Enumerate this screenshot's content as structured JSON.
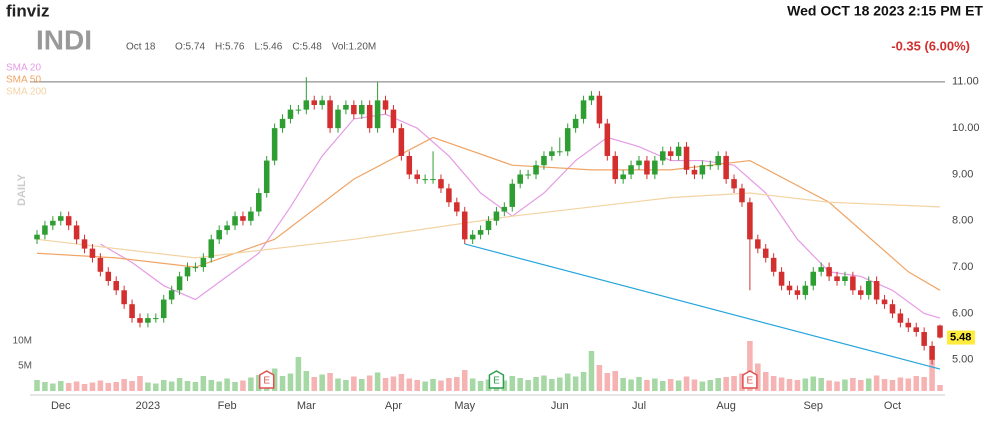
{
  "header": {
    "brand": "finviz",
    "datetime": "Wed OCT 18 2023 2:15 PM ET"
  },
  "chart_data": {
    "type": "candlestick",
    "title": "INDI",
    "date": "Oct 18",
    "quote": [
      "O:5.74",
      "H:5.76",
      "L:5.46",
      "C:5.48",
      "Vol:1.20M"
    ],
    "change": "-0.35 (6.00%)",
    "period": "DAILY",
    "up_color": "#2e9e32",
    "down_color": "#d32f2f",
    "open": [
      7.6,
      7.7,
      7.9,
      8.0,
      8.1,
      7.9,
      7.6,
      7.4,
      7.2,
      6.9,
      6.7,
      6.5,
      6.2,
      5.9,
      5.8,
      5.9,
      5.9,
      6.3,
      6.5,
      6.8,
      7.0,
      7.0,
      7.2,
      7.6,
      7.8,
      7.9,
      8.1,
      8.0,
      8.2,
      8.6,
      9.3,
      10.0,
      10.2,
      10.4,
      10.4,
      10.6,
      10.5,
      10.6,
      10.0,
      10.4,
      10.5,
      10.3,
      10.5,
      10.0,
      10.6,
      10.4,
      10.0,
      9.4,
      9.0,
      8.9,
      8.9,
      8.9,
      8.7,
      8.4,
      8.2,
      7.6,
      7.7,
      7.8,
      8.0,
      8.2,
      8.3,
      8.8,
      9.0,
      9.0,
      9.2,
      9.4,
      9.5,
      9.5,
      10.0,
      10.2,
      10.6,
      10.7,
      10.1,
      9.4,
      8.9,
      9.0,
      9.2,
      9.3,
      9.0,
      9.3,
      9.5,
      9.4,
      9.6,
      9.1,
      9.0,
      9.2,
      9.2,
      9.4,
      8.9,
      8.7,
      8.4,
      7.6,
      7.4,
      7.2,
      6.9,
      6.6,
      6.5,
      6.4,
      6.6,
      6.9,
      7.0,
      6.8,
      6.7,
      6.8,
      6.5,
      6.4,
      6.7,
      6.3,
      6.2,
      6.0,
      5.8,
      5.7,
      5.6,
      5.3,
      5.74
    ],
    "high": [
      7.8,
      8.0,
      8.1,
      8.2,
      8.2,
      8.0,
      7.7,
      7.5,
      7.3,
      7.0,
      6.8,
      6.6,
      6.3,
      6.0,
      6.0,
      6.0,
      6.4,
      6.6,
      6.9,
      7.1,
      7.1,
      7.3,
      7.7,
      7.9,
      8.0,
      8.2,
      8.2,
      8.3,
      8.7,
      9.4,
      10.1,
      10.3,
      10.5,
      10.5,
      11.1,
      10.7,
      10.7,
      10.7,
      10.5,
      10.6,
      10.6,
      10.6,
      10.6,
      11.0,
      10.7,
      10.5,
      10.1,
      9.5,
      9.1,
      9.0,
      9.5,
      9.0,
      8.8,
      8.5,
      8.3,
      7.8,
      7.9,
      8.1,
      8.3,
      8.4,
      8.9,
      9.1,
      9.1,
      9.3,
      9.5,
      9.6,
      9.8,
      10.1,
      10.3,
      10.7,
      10.8,
      10.8,
      10.2,
      9.5,
      9.1,
      9.3,
      9.4,
      9.4,
      9.4,
      9.6,
      9.6,
      9.7,
      9.7,
      9.2,
      9.3,
      9.3,
      9.5,
      9.5,
      9.0,
      8.8,
      8.5,
      7.7,
      7.5,
      7.3,
      7.0,
      6.7,
      6.6,
      6.7,
      7.0,
      7.1,
      7.1,
      6.9,
      6.9,
      6.9,
      6.6,
      6.8,
      6.8,
      6.4,
      6.3,
      6.1,
      5.9,
      5.8,
      5.7,
      5.4,
      5.76
    ],
    "low": [
      7.5,
      7.6,
      7.8,
      7.9,
      7.8,
      7.5,
      7.3,
      7.1,
      6.8,
      6.6,
      6.4,
      6.1,
      5.8,
      5.7,
      5.7,
      5.8,
      5.8,
      6.2,
      6.4,
      6.7,
      6.9,
      6.9,
      7.1,
      7.5,
      7.7,
      7.8,
      7.9,
      7.9,
      8.1,
      8.5,
      9.2,
      9.9,
      10.1,
      10.3,
      10.3,
      10.4,
      10.4,
      9.9,
      9.9,
      10.3,
      10.2,
      10.2,
      9.9,
      9.9,
      10.3,
      9.9,
      9.3,
      8.9,
      8.8,
      8.8,
      8.8,
      8.6,
      8.3,
      8.1,
      7.5,
      7.5,
      7.6,
      7.7,
      7.9,
      8.1,
      8.2,
      8.7,
      8.9,
      8.9,
      9.1,
      9.3,
      9.4,
      9.4,
      9.9,
      10.1,
      10.5,
      10.0,
      9.3,
      8.8,
      8.8,
      8.9,
      9.1,
      8.9,
      8.9,
      9.2,
      9.3,
      9.3,
      9.0,
      8.9,
      8.9,
      9.1,
      9.1,
      8.8,
      8.6,
      8.3,
      6.5,
      7.3,
      7.1,
      6.8,
      6.5,
      6.4,
      6.3,
      6.3,
      6.5,
      6.8,
      6.7,
      6.6,
      6.6,
      6.4,
      6.3,
      6.3,
      6.2,
      6.1,
      5.9,
      5.7,
      5.6,
      5.5,
      5.2,
      4.9,
      5.46
    ],
    "close": [
      7.7,
      7.9,
      8.0,
      8.1,
      7.9,
      7.6,
      7.4,
      7.2,
      6.9,
      6.7,
      6.5,
      6.2,
      5.9,
      5.8,
      5.9,
      5.9,
      6.3,
      6.5,
      6.8,
      7.0,
      7.0,
      7.2,
      7.6,
      7.8,
      7.9,
      8.1,
      8.0,
      8.2,
      8.6,
      9.3,
      10.0,
      10.2,
      10.4,
      10.4,
      10.6,
      10.5,
      10.6,
      10.0,
      10.4,
      10.5,
      10.3,
      10.5,
      10.0,
      10.6,
      10.4,
      10.0,
      9.4,
      9.0,
      8.9,
      8.9,
      8.9,
      8.7,
      8.4,
      8.2,
      7.6,
      7.7,
      7.8,
      8.0,
      8.2,
      8.3,
      8.8,
      9.0,
      9.0,
      9.2,
      9.4,
      9.5,
      9.5,
      10.0,
      10.2,
      10.6,
      10.7,
      10.1,
      9.4,
      8.9,
      9.0,
      9.2,
      9.3,
      9.0,
      9.3,
      9.5,
      9.4,
      9.6,
      9.1,
      9.0,
      9.2,
      9.2,
      9.4,
      8.9,
      8.7,
      8.4,
      7.6,
      7.4,
      7.2,
      6.9,
      6.6,
      6.5,
      6.4,
      6.6,
      6.9,
      7.0,
      6.8,
      6.7,
      6.8,
      6.5,
      6.4,
      6.7,
      6.3,
      6.2,
      6.0,
      5.8,
      5.7,
      5.6,
      5.3,
      5.0,
      5.48
    ],
    "xlim": [
      0,
      114
    ],
    "xticks": [
      {
        "value": 3,
        "label": "Dec"
      },
      {
        "value": 14,
        "label": "2023"
      },
      {
        "value": 24,
        "label": "Feb"
      },
      {
        "value": 34,
        "label": "Mar"
      },
      {
        "value": 45,
        "label": "Apr"
      },
      {
        "value": 54,
        "label": "May"
      },
      {
        "value": 66,
        "label": "Jun"
      },
      {
        "value": 76,
        "label": "Jul"
      },
      {
        "value": 87,
        "label": "Aug"
      },
      {
        "value": 98,
        "label": "Sep"
      },
      {
        "value": 108,
        "label": "Oct"
      }
    ],
    "ylim": [
      4.24,
      11.73
    ],
    "yticks": [
      {
        "value": 5,
        "label": "5.00"
      },
      {
        "value": 6,
        "label": "6.00"
      },
      {
        "value": 7,
        "label": "7.00"
      },
      {
        "value": 8,
        "label": "8.00"
      },
      {
        "value": 9,
        "label": "9.00"
      },
      {
        "value": 10,
        "label": "10.00"
      },
      {
        "value": 11,
        "label": "11.00"
      }
    ],
    "hline": 11,
    "volume": {
      "up_color": "#a6d8a6",
      "down_color": "#f5b3b3",
      "ylim": [
        0,
        20
      ],
      "yticks": [
        {
          "value": 5,
          "label": "5M"
        },
        {
          "value": 10,
          "label": "10M"
        }
      ],
      "values": [
        2.2,
        1.8,
        1.5,
        2.0,
        1.6,
        1.9,
        1.4,
        1.7,
        2.1,
        1.6,
        1.8,
        2.4,
        2.0,
        3.0,
        1.7,
        1.5,
        2.2,
        1.9,
        2.6,
        2.0,
        1.8,
        3.0,
        2.2,
        1.9,
        2.5,
        1.8,
        2.1,
        2.7,
        3.2,
        3.8,
        4.5,
        3.0,
        3.5,
        6.8,
        4.0,
        2.8,
        3.3,
        3.6,
        2.5,
        2.2,
        2.9,
        2.4,
        3.1,
        3.7,
        2.6,
        2.9,
        3.4,
        2.5,
        2.2,
        1.9,
        2.4,
        2.1,
        2.6,
        2.8,
        4.2,
        2.5,
        2.0,
        2.3,
        2.9,
        2.1,
        3.0,
        2.6,
        2.2,
        2.8,
        3.1,
        2.4,
        2.7,
        3.5,
        2.9,
        3.8,
        8.0,
        5.2,
        3.6,
        4.0,
        2.6,
        2.3,
        2.8,
        2.2,
        2.5,
        2.0,
        2.4,
        2.1,
        2.9,
        2.3,
        1.9,
        2.2,
        2.6,
        2.8,
        3.0,
        3.5,
        10.0,
        5.5,
        3.8,
        3.0,
        2.7,
        2.4,
        2.2,
        2.5,
        2.9,
        2.6,
        2.1,
        1.9,
        2.3,
        2.6,
        2.2,
        2.5,
        3.1,
        2.4,
        2.2,
        2.7,
        2.5,
        3.0,
        2.8,
        6.5,
        1.2
      ]
    },
    "series": [
      {
        "name": "SMA 20",
        "color": "#e59be5",
        "x": [
          8,
          12,
          16,
          20,
          24,
          28,
          32,
          36,
          40,
          44,
          48,
          52,
          56,
          60,
          64,
          68,
          72,
          76,
          80,
          84,
          88,
          92,
          96,
          100,
          104,
          108,
          112,
          114
        ],
        "values": [
          7.5,
          7.1,
          6.6,
          6.3,
          6.8,
          7.3,
          8.3,
          9.4,
          10.2,
          10.3,
          10.0,
          9.4,
          8.6,
          8.1,
          8.6,
          9.3,
          9.8,
          9.6,
          9.3,
          9.3,
          9.2,
          8.6,
          7.6,
          6.9,
          6.8,
          6.5,
          6.0,
          5.9
        ]
      },
      {
        "name": "SMA 50",
        "color": "#f0a465",
        "x": [
          0,
          10,
          20,
          30,
          40,
          50,
          60,
          70,
          80,
          90,
          100,
          110,
          114
        ],
        "values": [
          7.3,
          7.2,
          7.0,
          7.6,
          8.9,
          9.8,
          9.2,
          9.1,
          9.1,
          9.3,
          8.4,
          6.9,
          6.5
        ]
      },
      {
        "name": "SMA 200",
        "color": "#f3d3a3",
        "x": [
          0,
          20,
          40,
          60,
          80,
          90,
          100,
          114
        ],
        "values": [
          7.6,
          7.2,
          7.6,
          8.1,
          8.5,
          8.6,
          8.4,
          8.3
        ]
      }
    ],
    "trendline": {
      "color": "#27a6dd",
      "x": [
        54,
        114
      ],
      "values": [
        7.5,
        4.8
      ]
    },
    "events": [
      {
        "x": 29,
        "label": "E",
        "color": "#e05050"
      },
      {
        "x": 58,
        "label": "E",
        "color": "#2e9e50"
      },
      {
        "x": 90,
        "label": "E",
        "color": "#e05050"
      }
    ]
  }
}
